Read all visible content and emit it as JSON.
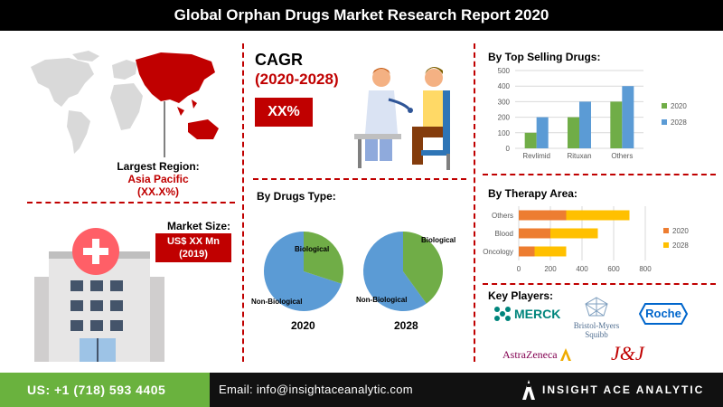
{
  "title": "Global Orphan Drugs Market Research Report 2020",
  "largest_region": {
    "label": "Largest Region:",
    "name": "Asia Pacific",
    "value": "(XX.X%)"
  },
  "market_size": {
    "label": "Market Size:",
    "value_line1": "US$ XX Mn",
    "value_line2": "(2019)"
  },
  "cagr": {
    "label": "CAGR",
    "period": "(2020-2028)",
    "value": "XX%"
  },
  "drugs_type": {
    "heading": "By Drugs Type:",
    "pies": [
      {
        "year": "2020",
        "biological_label": "Biological",
        "non_biological_label": "Non-Biological",
        "biological_share": 0.3,
        "non_biological_share": 0.7
      },
      {
        "year": "2028",
        "biological_label": "Biological",
        "non_biological_label": "Non-Biological",
        "biological_share": 0.4,
        "non_biological_share": 0.6
      }
    ]
  },
  "top_selling": {
    "heading": "By Top Selling Drugs:"
  },
  "therapy_area": {
    "heading": "By Therapy Area:"
  },
  "key_players": {
    "heading": "Key Players:",
    "logos": [
      "MERCK",
      "Bristol-Myers Squibb",
      "Roche",
      "AstraZeneca",
      "J&J"
    ]
  },
  "footer": {
    "phone": "US: +1 (718) 593 4405",
    "email": "Email: info@insightaceanalytic.com",
    "brand": "INSIGHT ACE ANALYTIC"
  },
  "colors": {
    "red": "#c00000",
    "green": "#6ab23e",
    "blue": "#5b9bd5",
    "orange": "#ed7d31",
    "yellow": "#ffc000",
    "chart_green": "#70ad47"
  },
  "chart_data": [
    {
      "type": "bar",
      "categories": [
        "Revlimid",
        "Rituxan",
        "Others"
      ],
      "series": [
        {
          "name": "2020",
          "values": [
            100,
            200,
            300
          ]
        },
        {
          "name": "2028",
          "values": [
            200,
            300,
            400
          ]
        }
      ],
      "ylim": [
        0,
        500
      ],
      "yticks": [
        "0",
        "100",
        "200",
        "300",
        "400",
        "500"
      ],
      "grid": true,
      "legend": "right"
    },
    {
      "type": "bar",
      "orientation": "horizontal",
      "stacked": true,
      "categories": [
        "Others",
        "Blood",
        "Oncology"
      ],
      "series": [
        {
          "name": "2020",
          "values": [
            300,
            200,
            100
          ]
        },
        {
          "name": "2028",
          "values": [
            400,
            300,
            200
          ]
        }
      ],
      "xlim": [
        0,
        800
      ],
      "xticks": [
        "0",
        "200",
        "400",
        "600",
        "800"
      ],
      "grid": true,
      "legend": "right"
    }
  ]
}
